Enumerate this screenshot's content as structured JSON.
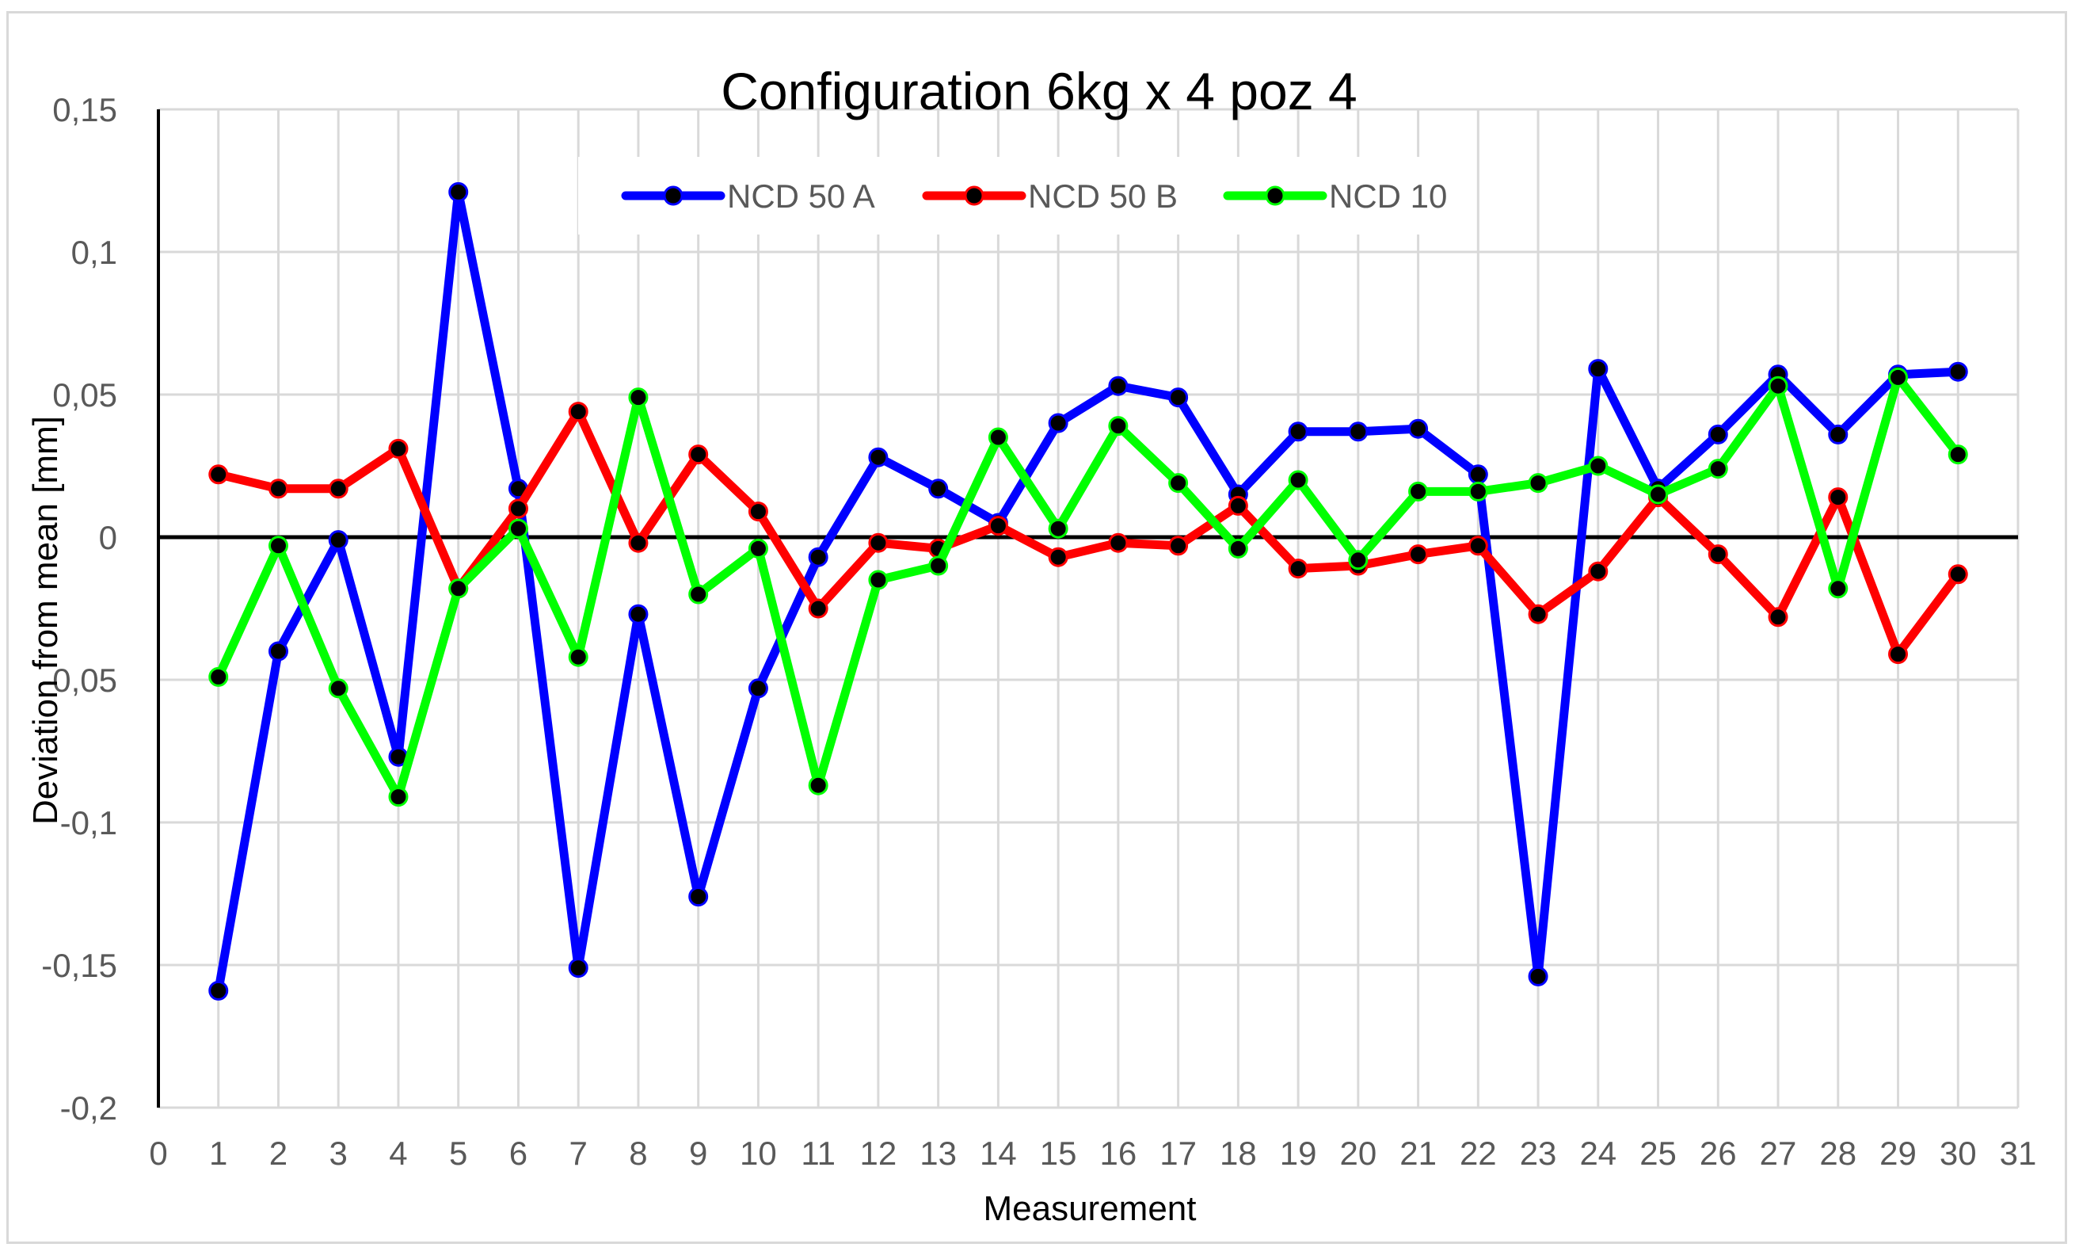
{
  "chart_data": {
    "type": "line",
    "title": "Configuration 6kg x 4 poz 4",
    "xlabel": "Measurement",
    "ylabel": "Deviation from mean [mm]",
    "xlim": [
      0,
      31
    ],
    "ylim": [
      -0.2,
      0.15
    ],
    "x_ticks": [
      "0",
      "1",
      "2",
      "3",
      "4",
      "5",
      "6",
      "7",
      "8",
      "9",
      "10",
      "11",
      "12",
      "13",
      "14",
      "15",
      "16",
      "17",
      "18",
      "19",
      "20",
      "21",
      "22",
      "23",
      "24",
      "25",
      "26",
      "27",
      "28",
      "29",
      "30",
      "31"
    ],
    "y_ticks": [
      {
        "value": 0.15,
        "label": "0,15"
      },
      {
        "value": 0.1,
        "label": "0,1"
      },
      {
        "value": 0.05,
        "label": "0,05"
      },
      {
        "value": 0,
        "label": "0"
      },
      {
        "value": -0.05,
        "label": "-0,05"
      },
      {
        "value": -0.1,
        "label": "-0,1"
      },
      {
        "value": -0.15,
        "label": "-0,15"
      },
      {
        "value": -0.2,
        "label": "-0,2"
      }
    ],
    "grid": true,
    "legend_position": "top",
    "x": [
      1,
      2,
      3,
      4,
      5,
      6,
      7,
      8,
      9,
      10,
      11,
      12,
      13,
      14,
      15,
      16,
      17,
      18,
      19,
      20,
      21,
      22,
      23,
      24,
      25,
      26,
      27,
      28,
      29,
      30
    ],
    "series": [
      {
        "name": "NCD 50 A",
        "color": "#0000ff",
        "values": [
          -0.159,
          -0.04,
          -0.001,
          -0.077,
          0.121,
          0.017,
          -0.151,
          -0.027,
          -0.126,
          -0.053,
          -0.007,
          0.028,
          0.017,
          0.005,
          0.04,
          0.053,
          0.049,
          0.015,
          0.037,
          0.037,
          0.038,
          0.022,
          -0.154,
          0.059,
          0.017,
          0.036,
          0.057,
          0.036,
          0.057,
          0.058
        ]
      },
      {
        "name": "NCD 50 B",
        "color": "#ff0000",
        "values": [
          0.022,
          0.017,
          0.017,
          0.031,
          -0.018,
          0.01,
          0.044,
          -0.002,
          0.029,
          0.009,
          -0.025,
          -0.002,
          -0.004,
          0.004,
          -0.007,
          -0.002,
          -0.003,
          0.011,
          -0.011,
          -0.01,
          -0.006,
          -0.003,
          -0.027,
          -0.012,
          0.014,
          -0.006,
          -0.028,
          0.014,
          -0.041,
          -0.013
        ]
      },
      {
        "name": "NCD 10",
        "color": "#00ff00",
        "values": [
          -0.049,
          -0.003,
          -0.053,
          -0.091,
          -0.018,
          0.003,
          -0.042,
          0.049,
          -0.02,
          -0.004,
          -0.087,
          -0.015,
          -0.01,
          0.035,
          0.003,
          0.039,
          0.019,
          -0.004,
          0.02,
          -0.008,
          0.016,
          0.016,
          0.019,
          0.025,
          0.015,
          0.024,
          0.053,
          -0.018,
          0.056,
          0.029
        ]
      }
    ]
  }
}
